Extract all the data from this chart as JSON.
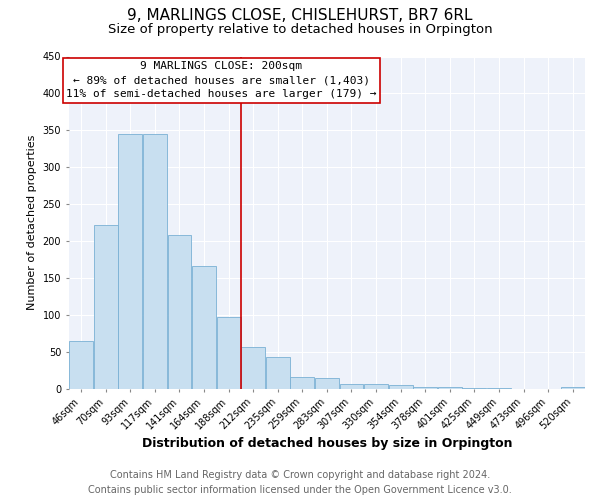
{
  "title": "9, MARLINGS CLOSE, CHISLEHURST, BR7 6RL",
  "subtitle": "Size of property relative to detached houses in Orpington",
  "xlabel": "Distribution of detached houses by size in Orpington",
  "ylabel": "Number of detached properties",
  "categories": [
    "46sqm",
    "70sqm",
    "93sqm",
    "117sqm",
    "141sqm",
    "164sqm",
    "188sqm",
    "212sqm",
    "235sqm",
    "259sqm",
    "283sqm",
    "307sqm",
    "330sqm",
    "354sqm",
    "378sqm",
    "401sqm",
    "425sqm",
    "449sqm",
    "473sqm",
    "496sqm",
    "520sqm"
  ],
  "values": [
    65,
    222,
    345,
    345,
    209,
    166,
    98,
    57,
    43,
    16,
    15,
    6,
    7,
    5,
    2,
    2,
    1,
    1,
    0,
    0,
    2
  ],
  "bar_color": "#c8dff0",
  "bar_edge_color": "#7ab0d4",
  "highlight_line_color": "#cc0000",
  "annotation_title": "9 MARLINGS CLOSE: 200sqm",
  "annotation_line1": "← 89% of detached houses are smaller (1,403)",
  "annotation_line2": "11% of semi-detached houses are larger (179) →",
  "annotation_box_color": "#ffffff",
  "annotation_box_edge_color": "#cc0000",
  "ylim": [
    0,
    450
  ],
  "yticks": [
    0,
    50,
    100,
    150,
    200,
    250,
    300,
    350,
    400,
    450
  ],
  "footer_line1": "Contains HM Land Registry data © Crown copyright and database right 2024.",
  "footer_line2": "Contains public sector information licensed under the Open Government Licence v3.0.",
  "background_color": "#ffffff",
  "plot_bg_color": "#eef2fa",
  "title_fontsize": 11,
  "subtitle_fontsize": 9.5,
  "xlabel_fontsize": 9,
  "ylabel_fontsize": 8,
  "footer_fontsize": 7,
  "tick_fontsize": 7
}
